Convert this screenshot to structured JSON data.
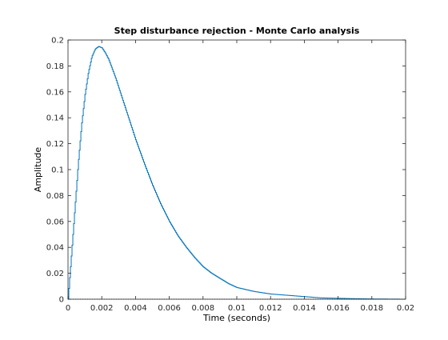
{
  "chart_data": {
    "type": "line",
    "title": "Step disturbance rejection - Monte Carlo analysis",
    "xlabel": "Time (seconds)",
    "ylabel": "Amplitude",
    "xlim": [
      0,
      0.02
    ],
    "ylim": [
      0,
      0.2
    ],
    "xticks": [
      0,
      0.002,
      0.004,
      0.006,
      0.008,
      0.01,
      0.012,
      0.014,
      0.016,
      0.018,
      0.02
    ],
    "xtick_labels": [
      "0",
      "0.002",
      "0.004",
      "0.006",
      "0.008",
      "0.01",
      "0.012",
      "0.014",
      "0.016",
      "0.018",
      "0.02"
    ],
    "yticks": [
      0,
      0.02,
      0.04,
      0.06,
      0.08,
      0.1,
      0.12,
      0.14,
      0.16,
      0.18,
      0.2
    ],
    "ytick_labels": [
      "0",
      "0.02",
      "0.04",
      "0.06",
      "0.08",
      "0.1",
      "0.12",
      "0.14",
      "0.16",
      "0.18",
      "0.2"
    ],
    "grid": false,
    "series_color": "#0072bd",
    "baseline_color": "#000000",
    "series": [
      {
        "style": "stairs",
        "x": [
          0,
          0.0002,
          0.0004,
          0.0006,
          0.0008,
          0.001,
          0.0012,
          0.0014,
          0.0016,
          0.0018,
          0.002,
          0.0022,
          0.0024,
          0.0026,
          0.0028,
          0.003,
          0.0035,
          0.004,
          0.0045,
          0.005,
          0.0055,
          0.006,
          0.0065,
          0.007,
          0.0075,
          0.008,
          0.0085,
          0.009,
          0.0095,
          0.01,
          0.011,
          0.012,
          0.013,
          0.014,
          0.015,
          0.016,
          0.017,
          0.018,
          0.019,
          0.02
        ],
        "y": [
          0,
          0.035,
          0.07,
          0.105,
          0.135,
          0.158,
          0.175,
          0.187,
          0.193,
          0.195,
          0.194,
          0.19,
          0.185,
          0.178,
          0.171,
          0.163,
          0.143,
          0.123,
          0.105,
          0.088,
          0.073,
          0.06,
          0.049,
          0.04,
          0.032,
          0.025,
          0.02,
          0.016,
          0.012,
          0.009,
          0.006,
          0.004,
          0.003,
          0.002,
          0.001,
          0.0007,
          0.0004,
          0.0002,
          0.0001,
          0
        ]
      }
    ]
  }
}
